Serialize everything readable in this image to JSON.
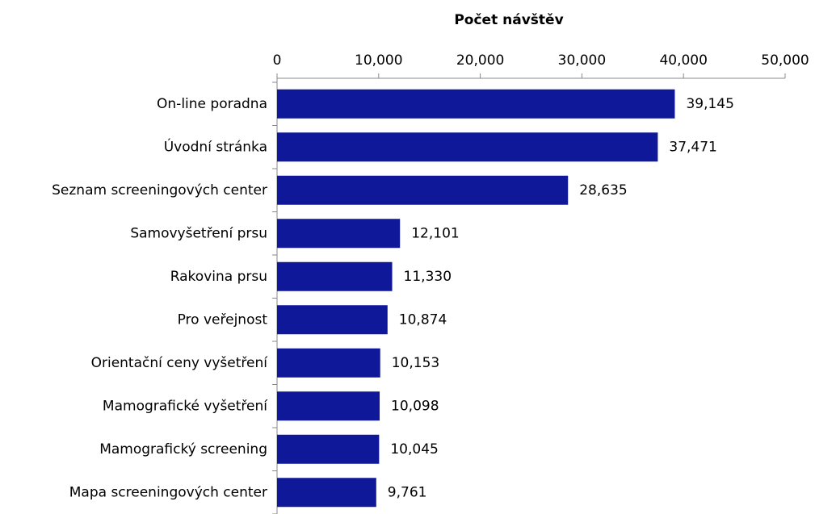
{
  "chart_data": {
    "type": "bar",
    "orientation": "horizontal",
    "title": "Počet návštěv",
    "categories": [
      "On-line poradna",
      "Úvodní stránka",
      "Seznam screeningových center",
      "Samovyšetření prsu",
      "Rakovina prsu",
      "Pro veřejnost",
      "Orientační ceny vyšetření",
      "Mamografické vyšetření",
      "Mamografický screening",
      "Mapa screeningových center"
    ],
    "values": [
      39145,
      37471,
      28635,
      12101,
      11330,
      10874,
      10153,
      10098,
      10045,
      9761
    ],
    "value_labels": [
      "39,145",
      "37,471",
      "28,635",
      "12,101",
      "11,330",
      "10,874",
      "10,153",
      "10,098",
      "10,045",
      "9,761"
    ],
    "color": "#10189a",
    "xlim": [
      0,
      50000
    ],
    "xticks": [
      0,
      {
        "value": 10000,
        "label": "10,000"
      },
      {
        "value": 20000,
        "label": "20,000"
      },
      {
        "value": 30000,
        "label": "30,000"
      },
      {
        "value": 40000,
        "label": "40,000"
      },
      {
        "value": 50000,
        "label": "50,000"
      }
    ],
    "axis_position": "top",
    "grid": false
  }
}
